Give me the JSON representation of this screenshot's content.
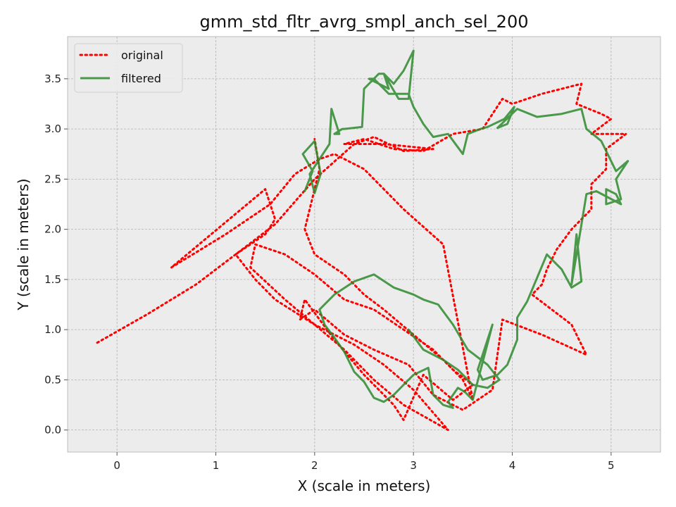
{
  "chart_data": {
    "type": "line",
    "title": "gmm_std_fltr_avrg_smpl_anch_sel_200",
    "xlabel": "X (scale in meters)",
    "ylabel": "Y (scale in meters)",
    "xlim": [
      -0.5,
      5.5
    ],
    "ylim": [
      -0.22,
      3.92
    ],
    "xticks": [
      0,
      1,
      2,
      3,
      4,
      5
    ],
    "yticks": [
      0.0,
      0.5,
      1.0,
      1.5,
      2.0,
      2.5,
      3.0,
      3.5
    ],
    "xtick_labels": [
      "0",
      "1",
      "2",
      "3",
      "4",
      "5"
    ],
    "ytick_labels": [
      "0.0",
      "0.5",
      "1.0",
      "1.5",
      "2.0",
      "2.5",
      "3.0",
      "3.5"
    ],
    "grid": true,
    "legend_position": "top-left",
    "series": [
      {
        "name": "original",
        "color": "#ff0000",
        "style": "dotted",
        "x": [
          -0.2,
          0.3,
          0.8,
          1.2,
          1.6,
          2.0,
          2.4,
          2.6,
          2.9,
          3.2,
          2.7,
          2.3,
          2.5,
          2.8,
          3.1,
          3.4,
          3.7,
          3.9,
          4.0,
          4.3,
          4.7,
          4.65,
          4.9,
          5.0,
          4.8,
          5.15,
          4.95,
          4.95,
          4.85,
          4.8,
          4.8,
          4.6,
          4.45,
          4.35,
          4.3,
          4.2,
          4.6,
          4.75,
          4.3,
          3.9,
          3.8,
          3.5,
          3.2,
          2.95,
          2.6,
          2.3,
          2.0,
          1.85,
          1.9,
          2.2,
          2.5,
          2.8,
          2.9,
          3.1,
          3.4,
          3.6,
          3.4,
          3.2,
          2.9,
          2.6,
          2.3,
          2.0,
          1.7,
          1.4,
          1.35,
          1.7,
          2.0,
          2.3,
          2.6,
          2.9,
          3.35,
          3.0,
          2.7,
          2.4,
          2.0,
          1.6,
          1.4,
          1.2,
          1.5,
          1.6,
          1.5,
          0.55,
          1.1,
          1.55,
          1.8,
          2.05,
          2.2,
          2.5,
          2.9,
          3.3,
          3.6,
          3.5,
          3.3,
          3.0,
          2.7,
          2.5,
          2.3,
          2.0,
          1.9,
          2.05,
          2.0
        ],
        "y": [
          0.87,
          1.15,
          1.45,
          1.75,
          2.05,
          2.5,
          2.85,
          2.92,
          2.78,
          2.8,
          2.85,
          2.85,
          2.9,
          2.8,
          2.78,
          2.95,
          3.0,
          3.3,
          3.25,
          3.35,
          3.45,
          3.25,
          3.15,
          3.1,
          2.95,
          2.95,
          2.8,
          2.6,
          2.5,
          2.45,
          2.2,
          2.0,
          1.8,
          1.6,
          1.45,
          1.35,
          1.05,
          0.75,
          0.95,
          1.1,
          0.4,
          0.2,
          0.35,
          0.65,
          0.8,
          0.95,
          1.2,
          1.1,
          1.3,
          0.9,
          0.55,
          0.25,
          0.1,
          0.55,
          0.3,
          0.45,
          0.6,
          0.8,
          1.0,
          1.2,
          1.3,
          1.55,
          1.75,
          1.85,
          1.62,
          1.3,
          1.05,
          0.8,
          0.5,
          0.25,
          0.0,
          0.4,
          0.65,
          0.85,
          1.05,
          1.3,
          1.5,
          1.75,
          1.95,
          2.1,
          2.4,
          1.62,
          1.95,
          2.25,
          2.55,
          2.7,
          2.75,
          2.6,
          2.2,
          1.85,
          0.3,
          0.5,
          0.7,
          0.95,
          1.2,
          1.35,
          1.55,
          1.75,
          2.0,
          2.6,
          2.9
        ]
      },
      {
        "name": "filtered",
        "color": "#2e8b2e",
        "style": "solid",
        "x": [
          1.9,
          1.98,
          1.88,
          2.0,
          2.06,
          2.0,
          1.95,
          2.15,
          2.17,
          2.25,
          2.2,
          2.28,
          2.3,
          2.48,
          2.5,
          2.55,
          2.65,
          2.7,
          2.85,
          2.95,
          3.0,
          2.9,
          2.8,
          2.7,
          2.75,
          2.55,
          2.6,
          2.75,
          2.95,
          3.0,
          3.1,
          3.2,
          3.35,
          3.5,
          3.55,
          3.68,
          3.75,
          3.92,
          4.02,
          3.95,
          3.85,
          4.05,
          4.25,
          4.5,
          4.7,
          4.75,
          4.9,
          5.05,
          5.17,
          5.05,
          5.1,
          4.95,
          4.95,
          5.05,
          5.1,
          4.85,
          4.75,
          4.6,
          4.65,
          4.7,
          4.6,
          4.5,
          4.35,
          4.15,
          4.05,
          4.05,
          3.95,
          3.85,
          3.7,
          3.65,
          3.8,
          3.6,
          3.52,
          3.45,
          3.35,
          3.4,
          3.3,
          3.2,
          3.15,
          3.0,
          2.9,
          2.8,
          2.7,
          2.6,
          2.5,
          2.4,
          2.3,
          2.2,
          2.1,
          2.05,
          2.2,
          2.4,
          2.6,
          2.8,
          3.0,
          3.1,
          3.25,
          3.4,
          3.55,
          3.75,
          3.87,
          3.75,
          3.6,
          3.45,
          3.3,
          3.1,
          2.95
        ],
        "y": [
          2.38,
          2.58,
          2.75,
          2.88,
          2.55,
          2.36,
          2.55,
          2.85,
          3.2,
          2.95,
          2.95,
          3.0,
          3.0,
          3.02,
          3.4,
          3.45,
          3.55,
          3.55,
          3.3,
          3.3,
          3.78,
          3.58,
          3.45,
          3.55,
          3.4,
          3.5,
          3.5,
          3.35,
          3.35,
          3.22,
          3.05,
          2.92,
          2.95,
          2.75,
          2.95,
          3.0,
          3.02,
          3.1,
          3.22,
          3.05,
          3.01,
          3.2,
          3.12,
          3.15,
          3.2,
          3.0,
          2.88,
          2.58,
          2.68,
          2.5,
          2.3,
          2.25,
          2.4,
          2.35,
          2.25,
          2.38,
          2.35,
          1.45,
          1.95,
          1.48,
          1.42,
          1.6,
          1.75,
          1.28,
          1.12,
          0.9,
          0.65,
          0.55,
          0.5,
          0.6,
          1.05,
          0.3,
          0.38,
          0.42,
          0.28,
          0.22,
          0.25,
          0.35,
          0.62,
          0.55,
          0.45,
          0.35,
          0.28,
          0.32,
          0.48,
          0.58,
          0.78,
          0.92,
          1.05,
          1.2,
          1.35,
          1.48,
          1.55,
          1.42,
          1.35,
          1.3,
          1.25,
          1.05,
          0.8,
          0.65,
          0.5,
          0.42,
          0.45,
          0.6,
          0.7,
          0.8,
          1.0
        ]
      }
    ]
  }
}
